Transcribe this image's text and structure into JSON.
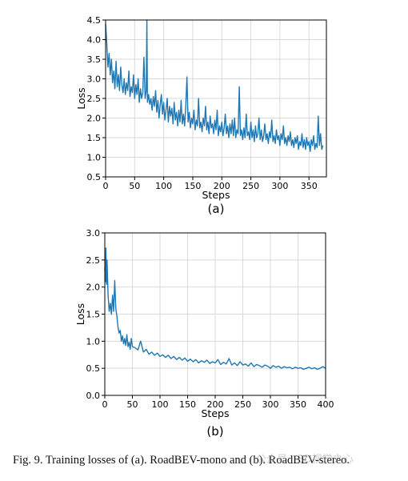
{
  "figure": {
    "caption": "Fig. 9.  Training losses of (a). RoadBEV-mono and (b). RoadBEV-stereo.",
    "watermark": "公众号 · 3D视觉之心"
  },
  "colors": {
    "series": "#1f77b4",
    "grid": "#d9d9d9",
    "axis": "#000000"
  },
  "chart_data": [
    {
      "type": "line",
      "panel_label": "(a)",
      "xlabel": "Steps",
      "ylabel": "Loss",
      "xlim": [
        0,
        380
      ],
      "ylim": [
        0.5,
        4.5
      ],
      "xticks": [
        0,
        50,
        100,
        150,
        200,
        250,
        300,
        350
      ],
      "yticks": [
        0.5,
        1.0,
        1.5,
        2.0,
        2.5,
        3.0,
        3.5,
        4.0,
        4.5
      ],
      "ytick_labels": [
        "0.5",
        "1.0",
        "1.5",
        "2.0",
        "2.5",
        "3.0",
        "3.5",
        "4.0",
        "4.5"
      ],
      "grid": true,
      "series": [
        {
          "x": [
            0,
            2,
            4,
            6,
            8,
            10,
            12,
            14,
            16,
            18,
            20,
            22,
            24,
            26,
            28,
            30,
            32,
            34,
            36,
            38,
            40,
            42,
            44,
            46,
            48,
            50,
            52,
            54,
            56,
            58,
            60,
            62,
            64,
            66,
            68,
            70,
            71,
            72,
            74,
            76,
            78,
            80,
            82,
            84,
            86,
            88,
            90,
            92,
            94,
            96,
            98,
            100,
            102,
            104,
            106,
            108,
            110,
            112,
            114,
            116,
            118,
            120,
            122,
            124,
            126,
            128,
            130,
            132,
            134,
            136,
            138,
            140,
            142,
            144,
            146,
            148,
            150,
            152,
            154,
            156,
            158,
            160,
            162,
            164,
            166,
            168,
            170,
            172,
            174,
            176,
            178,
            180,
            182,
            184,
            186,
            188,
            190,
            192,
            194,
            196,
            198,
            200,
            202,
            204,
            206,
            208,
            210,
            212,
            214,
            216,
            218,
            220,
            222,
            224,
            226,
            228,
            230,
            232,
            234,
            236,
            238,
            240,
            242,
            244,
            246,
            248,
            250,
            252,
            254,
            256,
            258,
            260,
            262,
            264,
            266,
            268,
            270,
            272,
            274,
            276,
            278,
            280,
            282,
            284,
            286,
            288,
            290,
            292,
            294,
            296,
            298,
            300,
            302,
            304,
            306,
            308,
            310,
            312,
            314,
            316,
            318,
            320,
            322,
            324,
            326,
            328,
            330,
            332,
            334,
            336,
            338,
            340,
            342,
            344,
            346,
            348,
            350,
            352,
            354,
            356,
            358,
            360,
            362,
            364,
            366,
            368,
            370,
            372,
            374
          ],
          "y": [
            4.4,
            3.9,
            3.3,
            3.65,
            3.1,
            3.5,
            2.9,
            3.2,
            2.75,
            3.45,
            2.8,
            3.1,
            2.7,
            3.3,
            2.85,
            2.65,
            3.0,
            2.6,
            2.9,
            2.7,
            3.2,
            2.55,
            2.8,
            2.65,
            3.1,
            2.5,
            2.85,
            2.6,
            3.0,
            2.4,
            2.75,
            2.5,
            2.65,
            3.55,
            2.5,
            2.7,
            4.5,
            2.4,
            2.6,
            2.35,
            2.5,
            2.2,
            2.55,
            2.3,
            2.7,
            2.15,
            2.45,
            2.0,
            2.35,
            2.6,
            2.1,
            2.4,
            1.95,
            2.2,
            2.5,
            1.9,
            2.3,
            2.05,
            2.25,
            1.85,
            2.4,
            1.95,
            2.15,
            1.8,
            2.2,
            1.9,
            2.45,
            1.85,
            2.1,
            1.8,
            2.3,
            3.05,
            1.9,
            2.15,
            1.75,
            2.0,
            1.85,
            2.2,
            1.7,
            1.95,
            1.8,
            2.5,
            1.75,
            1.9,
            1.65,
            2.0,
            1.8,
            2.3,
            1.7,
            1.9,
            1.6,
            2.05,
            1.75,
            1.85,
            1.6,
            1.95,
            1.7,
            2.2,
            1.55,
            1.8,
            1.65,
            1.9,
            1.55,
            1.75,
            2.1,
            1.6,
            1.8,
            1.5,
            1.85,
            1.6,
            1.95,
            1.55,
            2.0,
            1.5,
            1.7,
            1.6,
            2.8,
            1.55,
            1.7,
            1.45,
            1.75,
            1.5,
            2.1,
            1.55,
            1.65,
            1.45,
            1.9,
            1.5,
            1.7,
            1.4,
            1.8,
            1.5,
            1.6,
            2.0,
            1.45,
            1.7,
            1.4,
            1.55,
            1.85,
            1.45,
            1.6,
            1.35,
            1.65,
            1.5,
            1.95,
            1.4,
            1.55,
            1.35,
            1.7,
            1.45,
            1.55,
            1.3,
            1.6,
            1.45,
            1.8,
            1.35,
            1.5,
            1.3,
            1.55,
            1.4,
            1.65,
            1.3,
            1.45,
            1.25,
            1.5,
            1.35,
            1.55,
            1.2,
            1.4,
            1.3,
            1.6,
            1.25,
            1.45,
            1.2,
            1.5,
            1.3,
            1.4,
            1.15,
            1.45,
            1.3,
            1.55,
            1.2,
            1.35,
            1.25,
            2.05,
            1.3,
            1.6,
            1.2,
            1.3
          ]
        }
      ]
    },
    {
      "type": "line",
      "panel_label": "(b)",
      "xlabel": "Steps",
      "ylabel": "Loss",
      "xlim": [
        0,
        400
      ],
      "ylim": [
        0.0,
        3.0
      ],
      "xticks": [
        0,
        50,
        100,
        150,
        200,
        250,
        300,
        350,
        400
      ],
      "yticks": [
        0.0,
        0.5,
        1.0,
        1.5,
        2.0,
        2.5,
        3.0
      ],
      "ytick_labels": [
        "0.0",
        "0.5",
        "1.0",
        "1.5",
        "2.0",
        "2.5",
        "3.0"
      ],
      "grid": true,
      "series": [
        {
          "x": [
            0,
            1,
            2,
            3,
            4,
            6,
            8,
            10,
            12,
            14,
            16,
            18,
            20,
            22,
            24,
            26,
            28,
            30,
            32,
            34,
            36,
            38,
            40,
            42,
            44,
            46,
            48,
            50,
            55,
            60,
            65,
            70,
            75,
            80,
            85,
            90,
            95,
            100,
            105,
            110,
            115,
            120,
            125,
            130,
            135,
            140,
            145,
            150,
            155,
            160,
            165,
            170,
            175,
            180,
            185,
            190,
            195,
            200,
            205,
            210,
            215,
            220,
            225,
            230,
            235,
            240,
            245,
            250,
            255,
            260,
            265,
            270,
            275,
            280,
            285,
            290,
            295,
            300,
            305,
            310,
            315,
            320,
            325,
            330,
            335,
            340,
            345,
            350,
            355,
            360,
            365,
            370,
            375,
            380,
            385,
            390,
            395,
            400
          ],
          "y": [
            2.35,
            2.1,
            2.72,
            2.05,
            2.5,
            1.85,
            1.55,
            1.7,
            1.5,
            1.85,
            1.55,
            2.12,
            1.6,
            1.45,
            1.25,
            1.15,
            1.2,
            1.0,
            1.1,
            0.95,
            1.05,
            0.92,
            1.12,
            0.9,
            0.98,
            0.85,
            1.05,
            0.9,
            0.88,
            0.84,
            1.0,
            0.8,
            0.85,
            0.76,
            0.8,
            0.74,
            0.78,
            0.72,
            0.75,
            0.7,
            0.74,
            0.68,
            0.72,
            0.66,
            0.7,
            0.65,
            0.69,
            0.63,
            0.67,
            0.62,
            0.66,
            0.6,
            0.64,
            0.61,
            0.65,
            0.59,
            0.62,
            0.6,
            0.66,
            0.57,
            0.61,
            0.58,
            0.68,
            0.56,
            0.6,
            0.55,
            0.62,
            0.56,
            0.58,
            0.54,
            0.6,
            0.53,
            0.57,
            0.55,
            0.52,
            0.56,
            0.54,
            0.5,
            0.55,
            0.52,
            0.54,
            0.5,
            0.53,
            0.51,
            0.52,
            0.49,
            0.52,
            0.5,
            0.51,
            0.48,
            0.5,
            0.52,
            0.49,
            0.51,
            0.48,
            0.5,
            0.53,
            0.5
          ]
        }
      ]
    }
  ]
}
